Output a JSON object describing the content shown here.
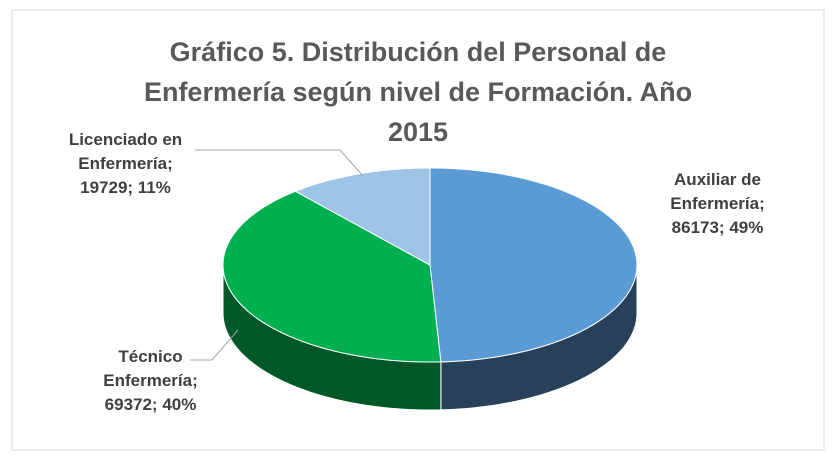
{
  "chart_data": {
    "type": "pie3d",
    "title": "Gráfico 5. Distribución del Personal de Enfermería según nivel de Formación. Año 2015",
    "values": [
      86173,
      69372,
      19729
    ],
    "value_labels": [
      "Auxiliar de Enfermería; 86173; 49%",
      "Técnico Enfermería; 69372; 40%",
      "Licenciado en Enfermería; 19729; 11%"
    ],
    "colors": [
      "#5b9bd5",
      "#00b050",
      "#9dc3e6"
    ]
  }
}
